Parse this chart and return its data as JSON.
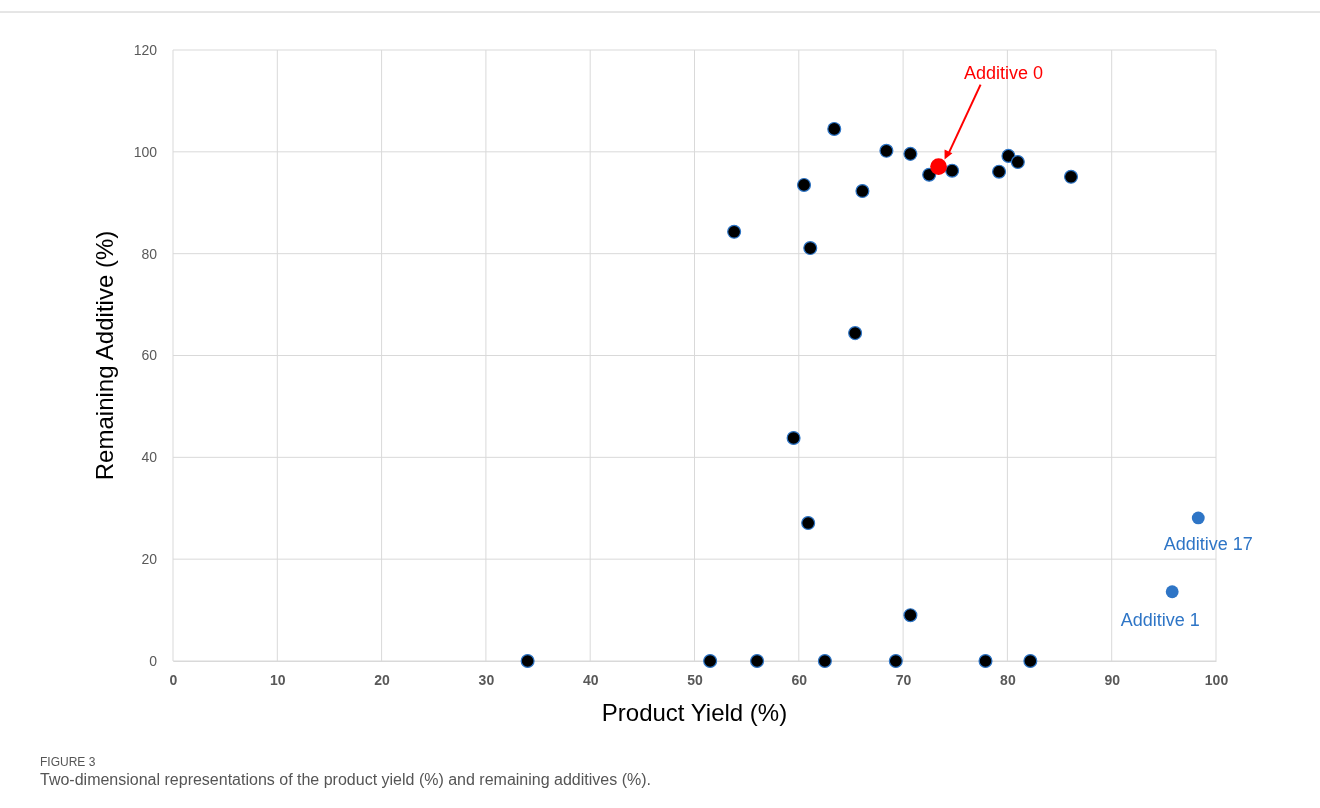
{
  "chart_data": {
    "type": "scatter",
    "xlabel": "Product Yield (%)",
    "ylabel": "Remaining Additive (%)",
    "xlim": [
      0,
      100
    ],
    "xticks": [
      0,
      10,
      20,
      30,
      40,
      50,
      60,
      70,
      80,
      90,
      100
    ],
    "ylim": [
      0,
      120
    ],
    "yticks": [
      0,
      20,
      40,
      60,
      80,
      100,
      120
    ],
    "grid": true,
    "marker": "circle",
    "series": [
      {
        "color": "#000000",
        "x": [
          34.0,
          51.5,
          56.0,
          62.5,
          69.3,
          77.9,
          82.2,
          70.7,
          60.9,
          59.5,
          65.4,
          53.8,
          61.1,
          60.5,
          66.1,
          63.4,
          68.4,
          70.7,
          72.5,
          74.7,
          79.2,
          80.1,
          81.0,
          86.1
        ],
        "values": [
          0,
          0,
          0,
          0,
          0,
          0,
          0,
          9.0,
          27.1,
          43.8,
          64.4,
          84.3,
          81.1,
          93.5,
          92.3,
          104.5,
          100.2,
          99.6,
          95.5,
          96.3,
          96.1,
          99.2,
          98.0,
          95.1
        ]
      },
      {
        "color": "#ff0000",
        "x": [
          73.4
        ],
        "values": [
          97.1
        ]
      },
      {
        "color": "#2e75c6",
        "x": [
          98.3,
          95.8
        ],
        "values": [
          28.1,
          13.6
        ]
      }
    ],
    "annotations": [
      "Additive 0",
      {
        "text": "Additive 17",
        "x": 98.3,
        "y": 28.1
      },
      {
        "text": "Additive 1",
        "x": 95.8,
        "y": 13.6
      },
      "FIGURE 3",
      "Two-dimensional representations of the product yield (%) and remaining additives (%)."
    ]
  }
}
